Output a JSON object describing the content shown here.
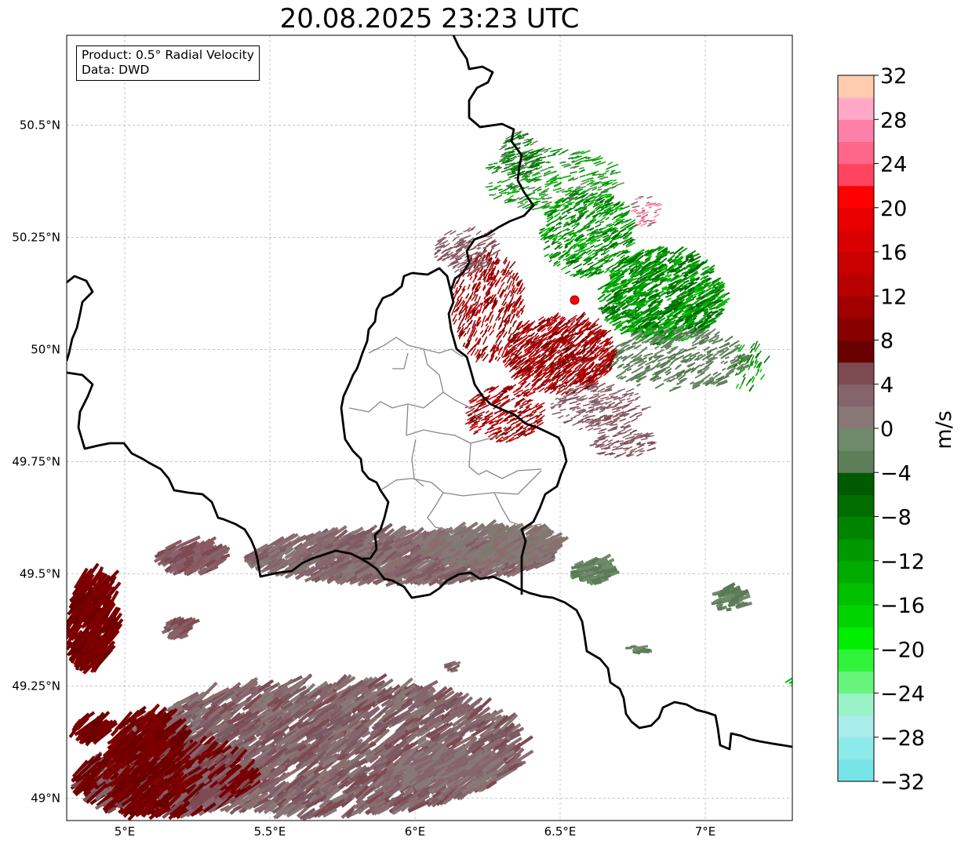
{
  "title": "20.08.2025 23:23 UTC",
  "info": {
    "product": "Product: 0.5° Radial Velocity",
    "data": "Data: DWD"
  },
  "map": {
    "lon_range": [
      4.8,
      7.3
    ],
    "lat_range": [
      48.95,
      50.7
    ],
    "lon_ticks": [
      {
        "value": 5.0,
        "label": "5°E"
      },
      {
        "value": 5.5,
        "label": "5.5°E"
      },
      {
        "value": 6.0,
        "label": "6°E"
      },
      {
        "value": 6.5,
        "label": "6.5°E"
      },
      {
        "value": 7.0,
        "label": "7°E"
      }
    ],
    "lat_ticks": [
      {
        "value": 49.0,
        "label": "49°N"
      },
      {
        "value": 49.25,
        "label": "49.25°N"
      },
      {
        "value": 49.5,
        "label": "49.5°N"
      },
      {
        "value": 49.75,
        "label": "49.75°N"
      },
      {
        "value": 50.0,
        "label": "50°N"
      },
      {
        "value": 50.25,
        "label": "50.25°N"
      },
      {
        "value": 50.5,
        "label": "50.5°N"
      }
    ],
    "gridlines": true,
    "radar_site": {
      "lon": 6.55,
      "lat": 50.11,
      "color": "#ff0000"
    }
  },
  "colorbar": {
    "unit": "m/s",
    "min": -32,
    "max": 32,
    "tick_labels": [
      "32",
      "28",
      "24",
      "20",
      "16",
      "12",
      "8",
      "4",
      "0",
      "−4",
      "−8",
      "−12",
      "−16",
      "−20",
      "−24",
      "−28",
      "−32"
    ],
    "tick_values": [
      32,
      28,
      24,
      20,
      16,
      12,
      8,
      4,
      0,
      -4,
      -8,
      -12,
      -16,
      -20,
      -24,
      -28,
      -32
    ],
    "colors_low_to_high": [
      "#77e4e8",
      "#8ceaea",
      "#a8ecec",
      "#9af3c6",
      "#68f47c",
      "#2ff43a",
      "#00ee00",
      "#00d400",
      "#00c000",
      "#00ac00",
      "#009800",
      "#008400",
      "#006e00",
      "#005a00",
      "#5e7e5a",
      "#6e8a6a",
      "#887878",
      "#86646e",
      "#7e4a52",
      "#6a0000",
      "#880000",
      "#a00000",
      "#b80000",
      "#c80000",
      "#d80000",
      "#e80000",
      "#ff0000",
      "#ff4460",
      "#ff6688",
      "#ff80a8",
      "#ffa8c8",
      "#ffccb0"
    ]
  }
}
